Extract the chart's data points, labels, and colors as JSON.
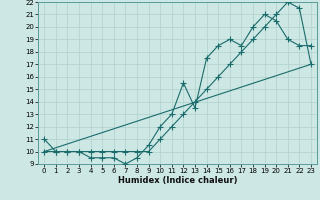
{
  "xlabel": "Humidex (Indice chaleur)",
  "bg_color": "#cde8e4",
  "line_color": "#1a6b6b",
  "grid_color": "#b0d0cc",
  "xlim": [
    0,
    23
  ],
  "ylim": [
    9,
    22
  ],
  "xticks": [
    0,
    1,
    2,
    3,
    4,
    5,
    6,
    7,
    8,
    9,
    10,
    11,
    12,
    13,
    14,
    15,
    16,
    17,
    18,
    19,
    20,
    21,
    22,
    23
  ],
  "yticks": [
    9,
    10,
    11,
    12,
    13,
    14,
    15,
    16,
    17,
    18,
    19,
    20,
    21,
    22
  ],
  "line1_x": [
    0,
    1,
    2,
    3,
    4,
    5,
    6,
    7,
    8,
    9,
    10,
    11,
    12,
    13,
    14,
    15,
    16,
    17,
    18,
    19,
    20,
    21,
    22,
    23
  ],
  "line1_y": [
    11,
    10,
    10,
    10,
    9.5,
    9.5,
    9.5,
    9,
    9.5,
    10.5,
    12,
    13,
    15.5,
    13.5,
    17.5,
    18.5,
    19,
    18.5,
    20,
    21,
    20.5,
    19,
    18.5,
    18.5
  ],
  "line2_x": [
    0,
    1,
    2,
    3,
    4,
    5,
    6,
    7,
    8,
    9,
    10,
    11,
    12,
    13,
    14,
    15,
    16,
    17,
    18,
    19,
    20,
    21,
    22,
    23
  ],
  "line2_y": [
    10,
    10,
    10,
    10,
    10,
    10,
    10,
    10,
    10,
    10,
    11,
    12,
    13,
    14,
    15,
    16,
    17,
    18,
    19,
    20,
    21,
    22,
    21.5,
    17
  ],
  "line3_x": [
    0,
    23
  ],
  "line3_y": [
    10,
    17
  ]
}
